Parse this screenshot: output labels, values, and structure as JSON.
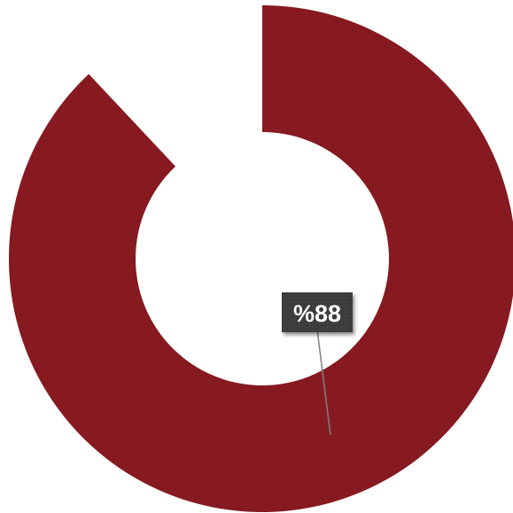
{
  "chart_data": {
    "type": "pie",
    "style": "donut",
    "start": "top",
    "direction": "clockwise",
    "slices": [
      {
        "value": 88,
        "color": "#861a20",
        "data_label": "%88"
      },
      {
        "value": 12,
        "color": "#ffffff",
        "data_label": ""
      }
    ],
    "data_label_box_color": "#3a3a3a",
    "leader_line_color": "#808080",
    "legend": "none",
    "title": ""
  }
}
